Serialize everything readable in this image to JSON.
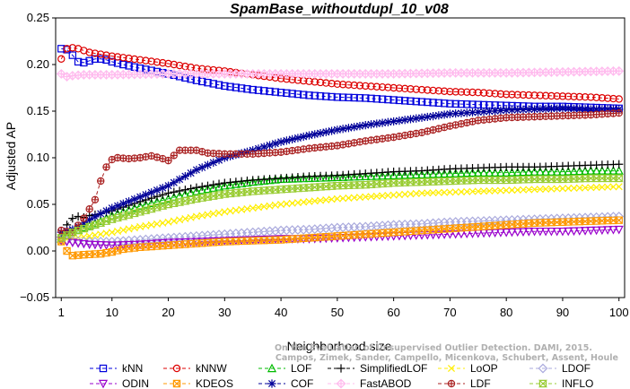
{
  "chart_data": {
    "type": "line",
    "title": "SpamBase_withoutdupl_10_v08",
    "xlabel": "Neighborhood size",
    "ylabel": "Adjusted AP",
    "xlim": [
      0,
      101
    ],
    "ylim": [
      -0.05,
      0.25
    ],
    "xticks": [
      1,
      10,
      20,
      30,
      40,
      50,
      60,
      70,
      80,
      90,
      100
    ],
    "yticks": [
      -0.05,
      0,
      0.05,
      0.1,
      0.15,
      0.2,
      0.25
    ],
    "ytick_labels": [
      "−0.05",
      "0.00",
      "0.05",
      "0.10",
      "0.15",
      "0.20",
      "0.25"
    ],
    "legend_position": "bottom",
    "watermark": {
      "line1": "Campos, Zimek, Sander, Campello, Micenkova, Schubert, Assent, Houle",
      "line2": "On the Evaluation of Unsupervised Outlier Detection. DAMI, 2015."
    },
    "series": [
      {
        "name": "kNN",
        "color": "#0000dd",
        "marker": "square",
        "points": [
          [
            1,
            0.217
          ],
          [
            2,
            0.216
          ],
          [
            3,
            0.21
          ],
          [
            4,
            0.203
          ],
          [
            5,
            0.202
          ],
          [
            6,
            0.204
          ],
          [
            7,
            0.206
          ],
          [
            8,
            0.206
          ],
          [
            9,
            0.205
          ],
          [
            10,
            0.203
          ],
          [
            12,
            0.2
          ],
          [
            15,
            0.196
          ],
          [
            20,
            0.19
          ],
          [
            25,
            0.183
          ],
          [
            30,
            0.177
          ],
          [
            35,
            0.173
          ],
          [
            40,
            0.17
          ],
          [
            45,
            0.167
          ],
          [
            50,
            0.165
          ],
          [
            55,
            0.164
          ],
          [
            60,
            0.162
          ],
          [
            65,
            0.16
          ],
          [
            70,
            0.158
          ],
          [
            75,
            0.157
          ],
          [
            80,
            0.156
          ],
          [
            85,
            0.155
          ],
          [
            90,
            0.155
          ],
          [
            95,
            0.154
          ],
          [
            100,
            0.153
          ]
        ]
      },
      {
        "name": "kNNW",
        "color": "#dd0000",
        "marker": "circle",
        "points": [
          [
            1,
            0.206
          ],
          [
            2,
            0.217
          ],
          [
            3,
            0.218
          ],
          [
            4,
            0.217
          ],
          [
            5,
            0.215
          ],
          [
            6,
            0.213
          ],
          [
            7,
            0.212
          ],
          [
            8,
            0.211
          ],
          [
            10,
            0.209
          ],
          [
            15,
            0.205
          ],
          [
            20,
            0.201
          ],
          [
            25,
            0.196
          ],
          [
            30,
            0.193
          ],
          [
            35,
            0.189
          ],
          [
            40,
            0.185
          ],
          [
            45,
            0.182
          ],
          [
            50,
            0.179
          ],
          [
            55,
            0.177
          ],
          [
            60,
            0.175
          ],
          [
            65,
            0.173
          ],
          [
            70,
            0.171
          ],
          [
            75,
            0.17
          ],
          [
            80,
            0.168
          ],
          [
            85,
            0.167
          ],
          [
            90,
            0.166
          ],
          [
            95,
            0.165
          ],
          [
            100,
            0.163
          ]
        ]
      },
      {
        "name": "LOF",
        "color": "#00bb00",
        "marker": "triangle-up",
        "points": [
          [
            1,
            0.013
          ],
          [
            3,
            0.02
          ],
          [
            5,
            0.025
          ],
          [
            8,
            0.032
          ],
          [
            10,
            0.038
          ],
          [
            15,
            0.048
          ],
          [
            20,
            0.056
          ],
          [
            25,
            0.064
          ],
          [
            30,
            0.07
          ],
          [
            35,
            0.074
          ],
          [
            40,
            0.077
          ],
          [
            45,
            0.078
          ],
          [
            50,
            0.079
          ],
          [
            55,
            0.08
          ],
          [
            60,
            0.081
          ],
          [
            65,
            0.082
          ],
          [
            70,
            0.083
          ],
          [
            75,
            0.084
          ],
          [
            80,
            0.084
          ],
          [
            85,
            0.085
          ],
          [
            90,
            0.085
          ],
          [
            95,
            0.086
          ],
          [
            100,
            0.086
          ]
        ]
      },
      {
        "name": "SimplifiedLOF",
        "color": "#000000",
        "marker": "plus",
        "points": [
          [
            1,
            0.015
          ],
          [
            2,
            0.028
          ],
          [
            3,
            0.035
          ],
          [
            4,
            0.037
          ],
          [
            5,
            0.036
          ],
          [
            6,
            0.038
          ],
          [
            8,
            0.04
          ],
          [
            10,
            0.043
          ],
          [
            15,
            0.053
          ],
          [
            20,
            0.062
          ],
          [
            25,
            0.068
          ],
          [
            30,
            0.073
          ],
          [
            35,
            0.076
          ],
          [
            40,
            0.078
          ],
          [
            45,
            0.08
          ],
          [
            50,
            0.081
          ],
          [
            55,
            0.083
          ],
          [
            60,
            0.085
          ],
          [
            65,
            0.086
          ],
          [
            70,
            0.088
          ],
          [
            75,
            0.089
          ],
          [
            80,
            0.09
          ],
          [
            85,
            0.09
          ],
          [
            90,
            0.091
          ],
          [
            95,
            0.092
          ],
          [
            100,
            0.093
          ]
        ]
      },
      {
        "name": "LoOP",
        "color": "#ffee00",
        "marker": "x",
        "points": [
          [
            1,
            0.012
          ],
          [
            5,
            0.015
          ],
          [
            10,
            0.02
          ],
          [
            15,
            0.026
          ],
          [
            20,
            0.031
          ],
          [
            25,
            0.037
          ],
          [
            30,
            0.042
          ],
          [
            35,
            0.046
          ],
          [
            40,
            0.05
          ],
          [
            45,
            0.053
          ],
          [
            50,
            0.056
          ],
          [
            55,
            0.058
          ],
          [
            60,
            0.06
          ],
          [
            65,
            0.062
          ],
          [
            70,
            0.063
          ],
          [
            75,
            0.064
          ],
          [
            80,
            0.065
          ],
          [
            85,
            0.066
          ],
          [
            90,
            0.067
          ],
          [
            95,
            0.068
          ],
          [
            100,
            0.069
          ]
        ]
      },
      {
        "name": "LDOF",
        "color": "#aaaadd",
        "marker": "diamond",
        "points": [
          [
            1,
            0.012
          ],
          [
            5,
            0.01
          ],
          [
            10,
            0.01
          ],
          [
            15,
            0.012
          ],
          [
            20,
            0.014
          ],
          [
            25,
            0.016
          ],
          [
            30,
            0.018
          ],
          [
            35,
            0.02
          ],
          [
            40,
            0.022
          ],
          [
            45,
            0.023
          ],
          [
            50,
            0.025
          ],
          [
            55,
            0.026
          ],
          [
            60,
            0.028
          ],
          [
            65,
            0.029
          ],
          [
            70,
            0.031
          ],
          [
            75,
            0.032
          ],
          [
            80,
            0.033
          ],
          [
            85,
            0.034
          ],
          [
            90,
            0.035
          ],
          [
            95,
            0.036
          ],
          [
            100,
            0.037
          ]
        ]
      },
      {
        "name": "ODIN",
        "color": "#9900cc",
        "marker": "triangle-down",
        "points": [
          [
            1,
            0.011
          ],
          [
            3,
            0.009
          ],
          [
            6,
            0.007
          ],
          [
            10,
            0.006
          ],
          [
            15,
            0.007
          ],
          [
            20,
            0.009
          ],
          [
            25,
            0.01
          ],
          [
            30,
            0.011
          ],
          [
            35,
            0.012
          ],
          [
            40,
            0.013
          ],
          [
            45,
            0.013
          ],
          [
            50,
            0.014
          ],
          [
            55,
            0.015
          ],
          [
            60,
            0.016
          ],
          [
            65,
            0.017
          ],
          [
            70,
            0.018
          ],
          [
            75,
            0.019
          ],
          [
            80,
            0.02
          ],
          [
            85,
            0.021
          ],
          [
            90,
            0.021
          ],
          [
            95,
            0.022
          ],
          [
            100,
            0.023
          ]
        ]
      },
      {
        "name": "KDEOS",
        "color": "#ff9900",
        "marker": "square-x",
        "points": [
          [
            1,
            0.01
          ],
          [
            2,
            0.0
          ],
          [
            3,
            -0.005
          ],
          [
            5,
            -0.004
          ],
          [
            8,
            -0.003
          ],
          [
            10,
            -0.001
          ],
          [
            12,
            0.002
          ],
          [
            15,
            0.004
          ],
          [
            20,
            0.006
          ],
          [
            25,
            0.008
          ],
          [
            30,
            0.01
          ],
          [
            35,
            0.011
          ],
          [
            40,
            0.012
          ],
          [
            45,
            0.014
          ],
          [
            50,
            0.016
          ],
          [
            55,
            0.018
          ],
          [
            60,
            0.02
          ],
          [
            65,
            0.022
          ],
          [
            70,
            0.024
          ],
          [
            75,
            0.026
          ],
          [
            80,
            0.028
          ],
          [
            85,
            0.03
          ],
          [
            90,
            0.031
          ],
          [
            95,
            0.032
          ],
          [
            100,
            0.033
          ]
        ]
      },
      {
        "name": "COF",
        "color": "#000099",
        "marker": "star",
        "points": [
          [
            1,
            0.02
          ],
          [
            3,
            0.023
          ],
          [
            5,
            0.03
          ],
          [
            8,
            0.04
          ],
          [
            10,
            0.046
          ],
          [
            15,
            0.058
          ],
          [
            20,
            0.07
          ],
          [
            25,
            0.087
          ],
          [
            30,
            0.1
          ],
          [
            35,
            0.108
          ],
          [
            40,
            0.117
          ],
          [
            45,
            0.124
          ],
          [
            50,
            0.13
          ],
          [
            55,
            0.135
          ],
          [
            60,
            0.139
          ],
          [
            65,
            0.143
          ],
          [
            70,
            0.147
          ],
          [
            75,
            0.149
          ],
          [
            80,
            0.151
          ],
          [
            85,
            0.152
          ],
          [
            90,
            0.153
          ],
          [
            95,
            0.152
          ],
          [
            100,
            0.152
          ]
        ]
      },
      {
        "name": "FastABOD",
        "color": "#ffbbee",
        "marker": "diamond-plus",
        "points": [
          [
            1,
            0.19
          ],
          [
            2,
            0.187
          ],
          [
            3,
            0.188
          ],
          [
            5,
            0.189
          ],
          [
            10,
            0.189
          ],
          [
            20,
            0.19
          ],
          [
            30,
            0.19
          ],
          [
            40,
            0.19
          ],
          [
            50,
            0.19
          ],
          [
            60,
            0.19
          ],
          [
            70,
            0.191
          ],
          [
            80,
            0.191
          ],
          [
            90,
            0.192
          ],
          [
            100,
            0.193
          ]
        ]
      },
      {
        "name": "LDF",
        "color": "#aa2222",
        "marker": "circle-plus",
        "points": [
          [
            1,
            0.022
          ],
          [
            3,
            0.02
          ],
          [
            5,
            0.035
          ],
          [
            7,
            0.055
          ],
          [
            8,
            0.075
          ],
          [
            9,
            0.09
          ],
          [
            10,
            0.098
          ],
          [
            11,
            0.1
          ],
          [
            13,
            0.099
          ],
          [
            15,
            0.1
          ],
          [
            17,
            0.102
          ],
          [
            19,
            0.099
          ],
          [
            20,
            0.097
          ],
          [
            22,
            0.108
          ],
          [
            25,
            0.108
          ],
          [
            27,
            0.105
          ],
          [
            30,
            0.104
          ],
          [
            35,
            0.104
          ],
          [
            40,
            0.106
          ],
          [
            45,
            0.11
          ],
          [
            50,
            0.113
          ],
          [
            55,
            0.118
          ],
          [
            60,
            0.122
          ],
          [
            65,
            0.127
          ],
          [
            70,
            0.134
          ],
          [
            75,
            0.14
          ],
          [
            80,
            0.143
          ],
          [
            85,
            0.144
          ],
          [
            90,
            0.145
          ],
          [
            95,
            0.146
          ],
          [
            100,
            0.148
          ]
        ]
      },
      {
        "name": "INFLO",
        "color": "#99cc33",
        "marker": "hourglass",
        "points": [
          [
            1,
            0.014
          ],
          [
            3,
            0.02
          ],
          [
            5,
            0.024
          ],
          [
            8,
            0.03
          ],
          [
            10,
            0.034
          ],
          [
            15,
            0.042
          ],
          [
            20,
            0.05
          ],
          [
            25,
            0.056
          ],
          [
            30,
            0.061
          ],
          [
            35,
            0.064
          ],
          [
            40,
            0.066
          ],
          [
            45,
            0.068
          ],
          [
            50,
            0.07
          ],
          [
            55,
            0.071
          ],
          [
            60,
            0.073
          ],
          [
            65,
            0.074
          ],
          [
            70,
            0.075
          ],
          [
            75,
            0.076
          ],
          [
            80,
            0.076
          ],
          [
            85,
            0.077
          ],
          [
            90,
            0.077
          ],
          [
            95,
            0.078
          ],
          [
            100,
            0.078
          ]
        ]
      }
    ]
  },
  "legend": {
    "rows": [
      [
        "kNN",
        "kNNW",
        "LOF",
        "SimplifiedLOF",
        "LoOP",
        "LDOF"
      ],
      [
        "ODIN",
        "KDEOS",
        "COF",
        "FastABOD",
        "LDF",
        "INFLO"
      ]
    ]
  }
}
